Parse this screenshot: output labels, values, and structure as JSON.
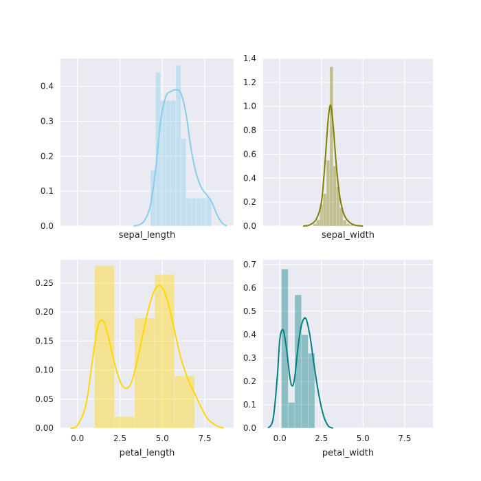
{
  "chart_data": [
    {
      "type": "histogram+kde",
      "xlabel": "sepal_length",
      "ylabel": "",
      "xlim": [
        -1.0,
        9.2
      ],
      "ylim": [
        0,
        0.48
      ],
      "x_ticks": [
        0.0,
        2.5,
        5.0,
        7.5
      ],
      "x_ticklabels_shown": false,
      "y_ticks": [
        0.0,
        0.1,
        0.2,
        0.3,
        0.4
      ],
      "y_ticklabels": [
        "0.0",
        "0.1",
        "0.2",
        "0.3",
        "0.4"
      ],
      "grid": true,
      "hist_color": "#87ceeb",
      "kde_color": "#87ceeb",
      "bin_edges": [
        4.3,
        4.6,
        4.9,
        5.2,
        5.5,
        5.8,
        6.1,
        6.4,
        6.7,
        7.0,
        7.3,
        7.6,
        7.9
      ],
      "bin_values": [
        0.16,
        0.44,
        0.36,
        0.36,
        0.36,
        0.46,
        0.25,
        0.08,
        0.08,
        0.08,
        0.08,
        0.08
      ],
      "kde": {
        "x": [
          3.3,
          3.7,
          4.0,
          4.3,
          4.6,
          4.9,
          5.2,
          5.5,
          5.8,
          6.1,
          6.4,
          6.7,
          7.0,
          7.3,
          7.6,
          7.9,
          8.2,
          8.5,
          8.8
        ],
        "y": [
          0.0,
          0.005,
          0.02,
          0.06,
          0.16,
          0.3,
          0.37,
          0.385,
          0.39,
          0.38,
          0.32,
          0.22,
          0.15,
          0.11,
          0.09,
          0.07,
          0.035,
          0.01,
          0.0
        ]
      }
    },
    {
      "type": "histogram+kde",
      "xlabel": "sepal_width",
      "ylabel": "",
      "xlim": [
        -1.0,
        9.2
      ],
      "ylim": [
        0,
        1.4
      ],
      "x_ticks": [
        0.0,
        2.5,
        5.0,
        7.5
      ],
      "x_ticklabels_shown": false,
      "y_ticks": [
        0.0,
        0.2,
        0.4,
        0.6,
        0.8,
        1.0,
        1.2,
        1.4
      ],
      "y_ticklabels": [
        "0.0",
        "0.2",
        "0.4",
        "0.6",
        "0.8",
        "1.0",
        "1.2",
        "1.4"
      ],
      "grid": true,
      "hist_color": "#808000",
      "kde_color": "#808000",
      "bin_edges": [
        2.0,
        2.2,
        2.4,
        2.6,
        2.8,
        3.0,
        3.2,
        3.4,
        3.6,
        3.8,
        4.0,
        4.2,
        4.4
      ],
      "bin_values": [
        0.02,
        0.05,
        0.18,
        0.27,
        0.55,
        1.33,
        0.5,
        0.33,
        0.15,
        0.05,
        0.02,
        0.01
      ],
      "kde": {
        "x": [
          1.4,
          1.8,
          2.2,
          2.5,
          2.7,
          2.9,
          3.05,
          3.2,
          3.4,
          3.6,
          3.8,
          4.0,
          4.3,
          4.6,
          5.0
        ],
        "y": [
          0.0,
          0.01,
          0.06,
          0.2,
          0.5,
          0.88,
          1.01,
          0.85,
          0.5,
          0.25,
          0.12,
          0.06,
          0.02,
          0.005,
          0.0
        ]
      }
    },
    {
      "type": "histogram+kde",
      "xlabel": "petal_length",
      "ylabel": "",
      "xlim": [
        -1.0,
        9.2
      ],
      "ylim": [
        0,
        0.29
      ],
      "x_ticks": [
        0.0,
        2.5,
        5.0,
        7.5
      ],
      "x_ticklabels": [
        "0.0",
        "2.5",
        "5.0",
        "7.5"
      ],
      "y_ticks": [
        0.0,
        0.05,
        0.1,
        0.15,
        0.2,
        0.25
      ],
      "y_ticklabels": [
        "0.00",
        "0.05",
        "0.10",
        "0.15",
        "0.20",
        "0.25"
      ],
      "grid": true,
      "hist_color": "#ffd700",
      "kde_color": "#ffd700",
      "bin_edges": [
        1.0,
        2.18,
        3.36,
        4.54,
        5.72,
        6.9
      ],
      "bin_values": [
        0.28,
        0.02,
        0.19,
        0.265,
        0.09
      ],
      "kde": {
        "x": [
          -0.4,
          0.0,
          0.5,
          0.9,
          1.2,
          1.5,
          1.8,
          2.2,
          2.6,
          3.0,
          3.3,
          3.7,
          4.1,
          4.5,
          4.9,
          5.3,
          5.7,
          6.1,
          6.5,
          6.9,
          7.3,
          7.7,
          8.2,
          8.6
        ],
        "y": [
          0.0,
          0.005,
          0.04,
          0.12,
          0.175,
          0.185,
          0.16,
          0.11,
          0.075,
          0.07,
          0.09,
          0.14,
          0.195,
          0.235,
          0.245,
          0.22,
          0.17,
          0.12,
          0.085,
          0.06,
          0.035,
          0.015,
          0.004,
          0.0
        ]
      }
    },
    {
      "type": "histogram+kde",
      "xlabel": "petal_width",
      "ylabel": "",
      "xlim": [
        -1.0,
        9.2
      ],
      "ylim": [
        0,
        0.72
      ],
      "x_ticks": [
        0.0,
        2.5,
        5.0,
        7.5
      ],
      "x_ticklabels": [
        "0.0",
        "2.5",
        "5.0",
        "7.5"
      ],
      "y_ticks": [
        0.0,
        0.1,
        0.2,
        0.3,
        0.4,
        0.5,
        0.6,
        0.7
      ],
      "y_ticklabels": [
        "0.0",
        "0.1",
        "0.2",
        "0.3",
        "0.4",
        "0.5",
        "0.6",
        "0.7"
      ],
      "grid": true,
      "hist_color": "#008080",
      "kde_color": "#008080",
      "bin_edges": [
        0.1,
        0.5,
        0.9,
        1.3,
        1.7,
        2.1,
        2.5
      ],
      "bin_values": [
        0.68,
        0.11,
        0.57,
        0.4,
        0.32,
        0.0
      ],
      "kde": {
        "x": [
          -0.7,
          -0.4,
          -0.15,
          0.0,
          0.2,
          0.4,
          0.6,
          0.75,
          0.9,
          1.1,
          1.3,
          1.55,
          1.8,
          2.0,
          2.3,
          2.6,
          2.9,
          3.2
        ],
        "y": [
          0.0,
          0.04,
          0.22,
          0.38,
          0.42,
          0.34,
          0.22,
          0.18,
          0.22,
          0.35,
          0.44,
          0.47,
          0.4,
          0.3,
          0.16,
          0.06,
          0.01,
          0.0
        ]
      }
    }
  ]
}
